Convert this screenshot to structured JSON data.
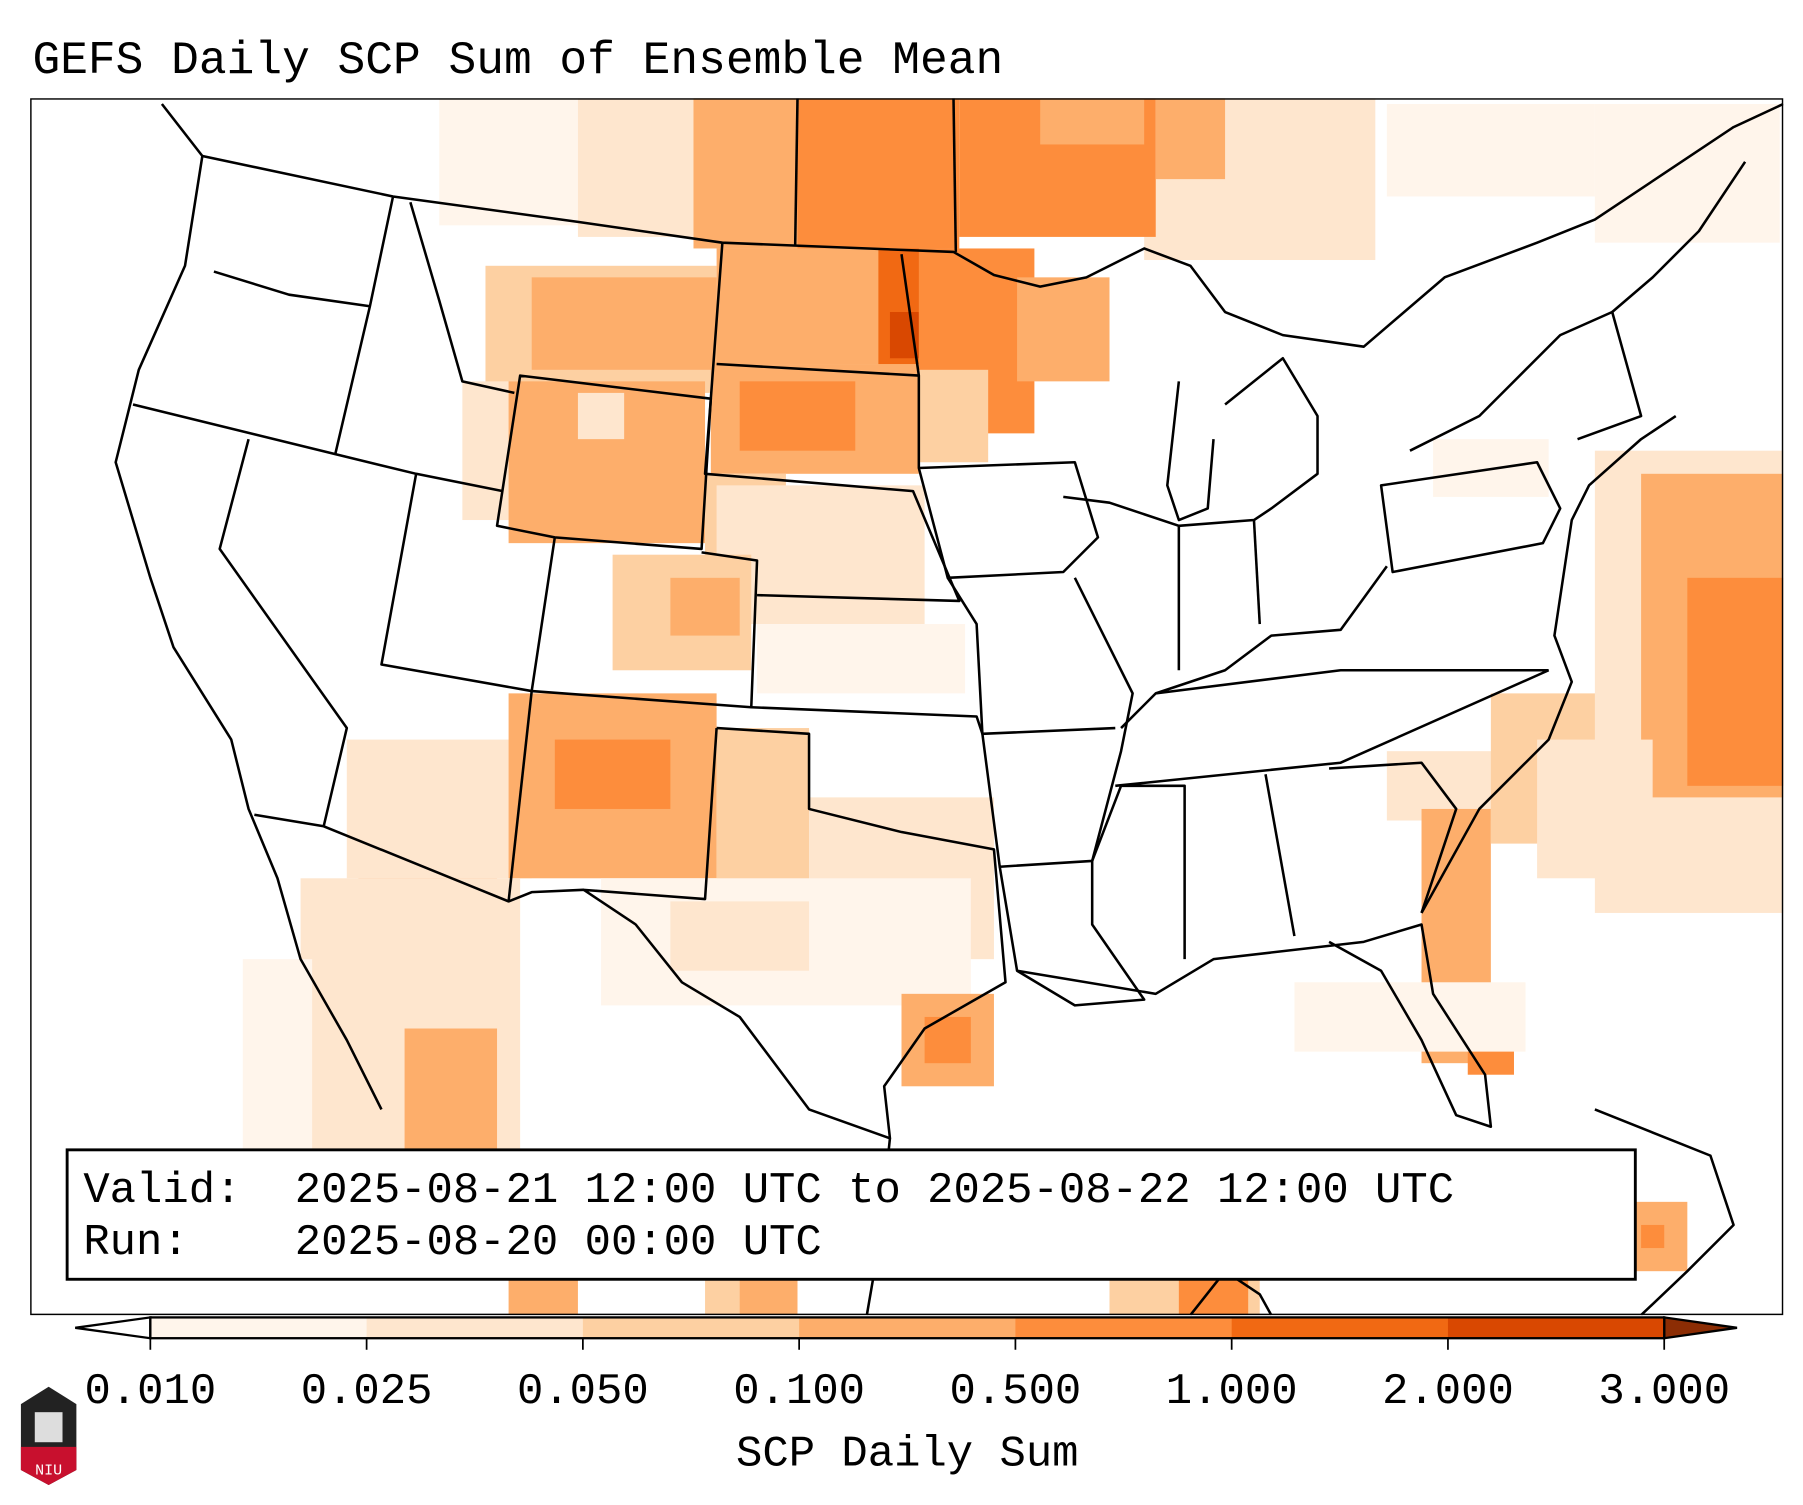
{
  "title": "GEFS Daily SCP Sum of Ensemble Mean",
  "info_box": {
    "valid_label": "Valid:",
    "valid_value": "2025-08-21 12:00 UTC to 2025-08-22 12:00 UTC",
    "run_label": "Run:",
    "run_value": "2025-08-20 00:00 UTC"
  },
  "colorbar": {
    "label": "SCP Daily Sum",
    "ticks": [
      "0.010",
      "0.025",
      "0.050",
      "0.100",
      "0.500",
      "1.000",
      "2.000",
      "3.000"
    ],
    "colors": [
      "#fff5eb",
      "#fee6ce",
      "#fdd0a2",
      "#fdae6b",
      "#fd8d3c",
      "#f16913",
      "#d94801"
    ],
    "under_color": "#ffffff",
    "over_color": "#8c2d04"
  },
  "logo": {
    "text": "NIU"
  }
}
